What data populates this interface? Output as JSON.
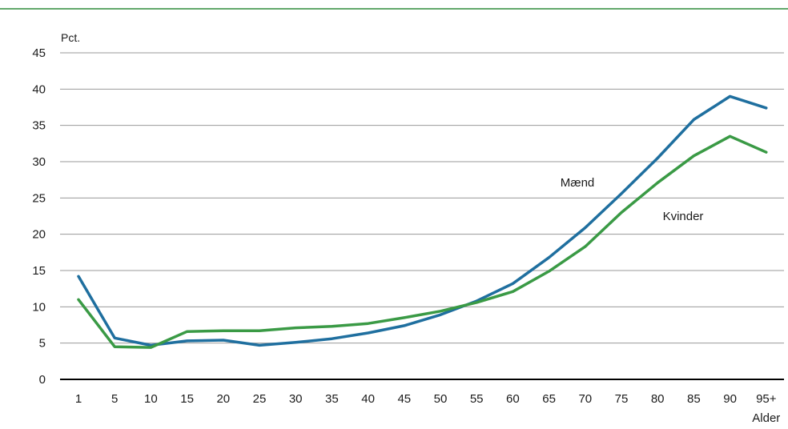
{
  "chart_data": {
    "type": "line",
    "ylabel": "Pct.",
    "xlabel": "Alder",
    "ylim": [
      0,
      45
    ],
    "yticks": [
      0,
      5,
      10,
      15,
      20,
      25,
      30,
      35,
      40,
      45
    ],
    "categories": [
      "1",
      "5",
      "10",
      "15",
      "20",
      "25",
      "30",
      "35",
      "40",
      "45",
      "50",
      "55",
      "60",
      "65",
      "70",
      "75",
      "80",
      "85",
      "90",
      "95+"
    ],
    "grid": true,
    "legend": "inline labels",
    "series": [
      {
        "name": "Mænd",
        "color": "#1f6f9f",
        "values": [
          14.2,
          5.7,
          4.7,
          5.3,
          5.4,
          4.7,
          5.1,
          5.6,
          6.4,
          7.4,
          8.9,
          10.8,
          13.2,
          16.8,
          20.9,
          25.6,
          30.5,
          35.8,
          39.0,
          37.4
        ]
      },
      {
        "name": "Kvinder",
        "color": "#3a9a45",
        "values": [
          11.0,
          4.5,
          4.4,
          6.6,
          6.7,
          6.7,
          7.1,
          7.3,
          7.7,
          8.5,
          9.4,
          10.6,
          12.1,
          14.9,
          18.3,
          23.0,
          27.1,
          30.8,
          33.5,
          31.3
        ]
      }
    ]
  }
}
